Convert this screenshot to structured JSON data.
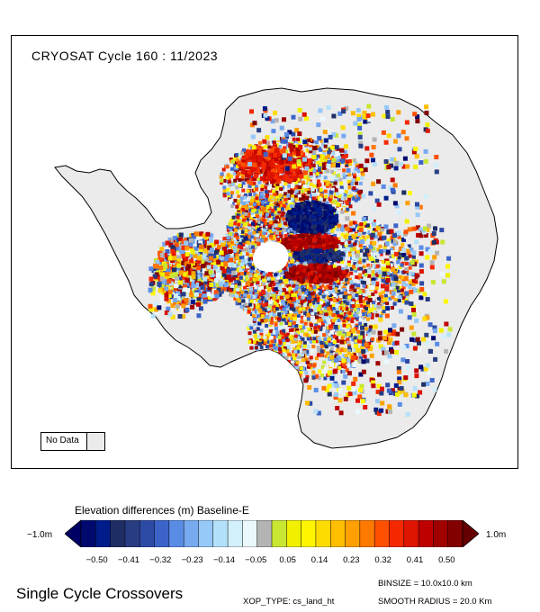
{
  "map": {
    "title": "CRYOSAT Cycle 160 : 11/2023",
    "no_data_label": "No Data",
    "no_data_color": "#ebebeb",
    "land_color": "#ebebeb"
  },
  "colorbar": {
    "title": "Elevation differences (m) Baseline-E",
    "min_label": "−1.0m",
    "max_label": "1.0m",
    "ticks": [
      "−0.50",
      "−0.41",
      "−0.32",
      "−0.23",
      "−0.14",
      "−0.05",
      "0.05",
      "0.14",
      "0.23",
      "0.32",
      "0.41",
      "0.50"
    ],
    "colors": [
      "#000a6e",
      "#001c8a",
      "#1e2d64",
      "#283c82",
      "#2d4ba5",
      "#3c64c8",
      "#5a8ce6",
      "#78aaf0",
      "#96c8f8",
      "#b4e1fa",
      "#d2f0fc",
      "#ebf8fe",
      "#b4b4b4",
      "#c8e632",
      "#f0f000",
      "#fff500",
      "#ffdc00",
      "#ffbe00",
      "#ffa000",
      "#ff7800",
      "#ff5000",
      "#f52800",
      "#dc1400",
      "#be0000",
      "#a00000",
      "#820000"
    ],
    "left_arrow_color": "#000064",
    "right_arrow_color": "#640000"
  },
  "footer": {
    "title": "Single Cycle Crossovers",
    "binsize": "BINSIZE = 10.0x10.0 km",
    "xop_type": "XOP_TYPE: cs_land_ht",
    "smooth_radius": "SMOOTH RADIUS = 20.0 Km"
  }
}
